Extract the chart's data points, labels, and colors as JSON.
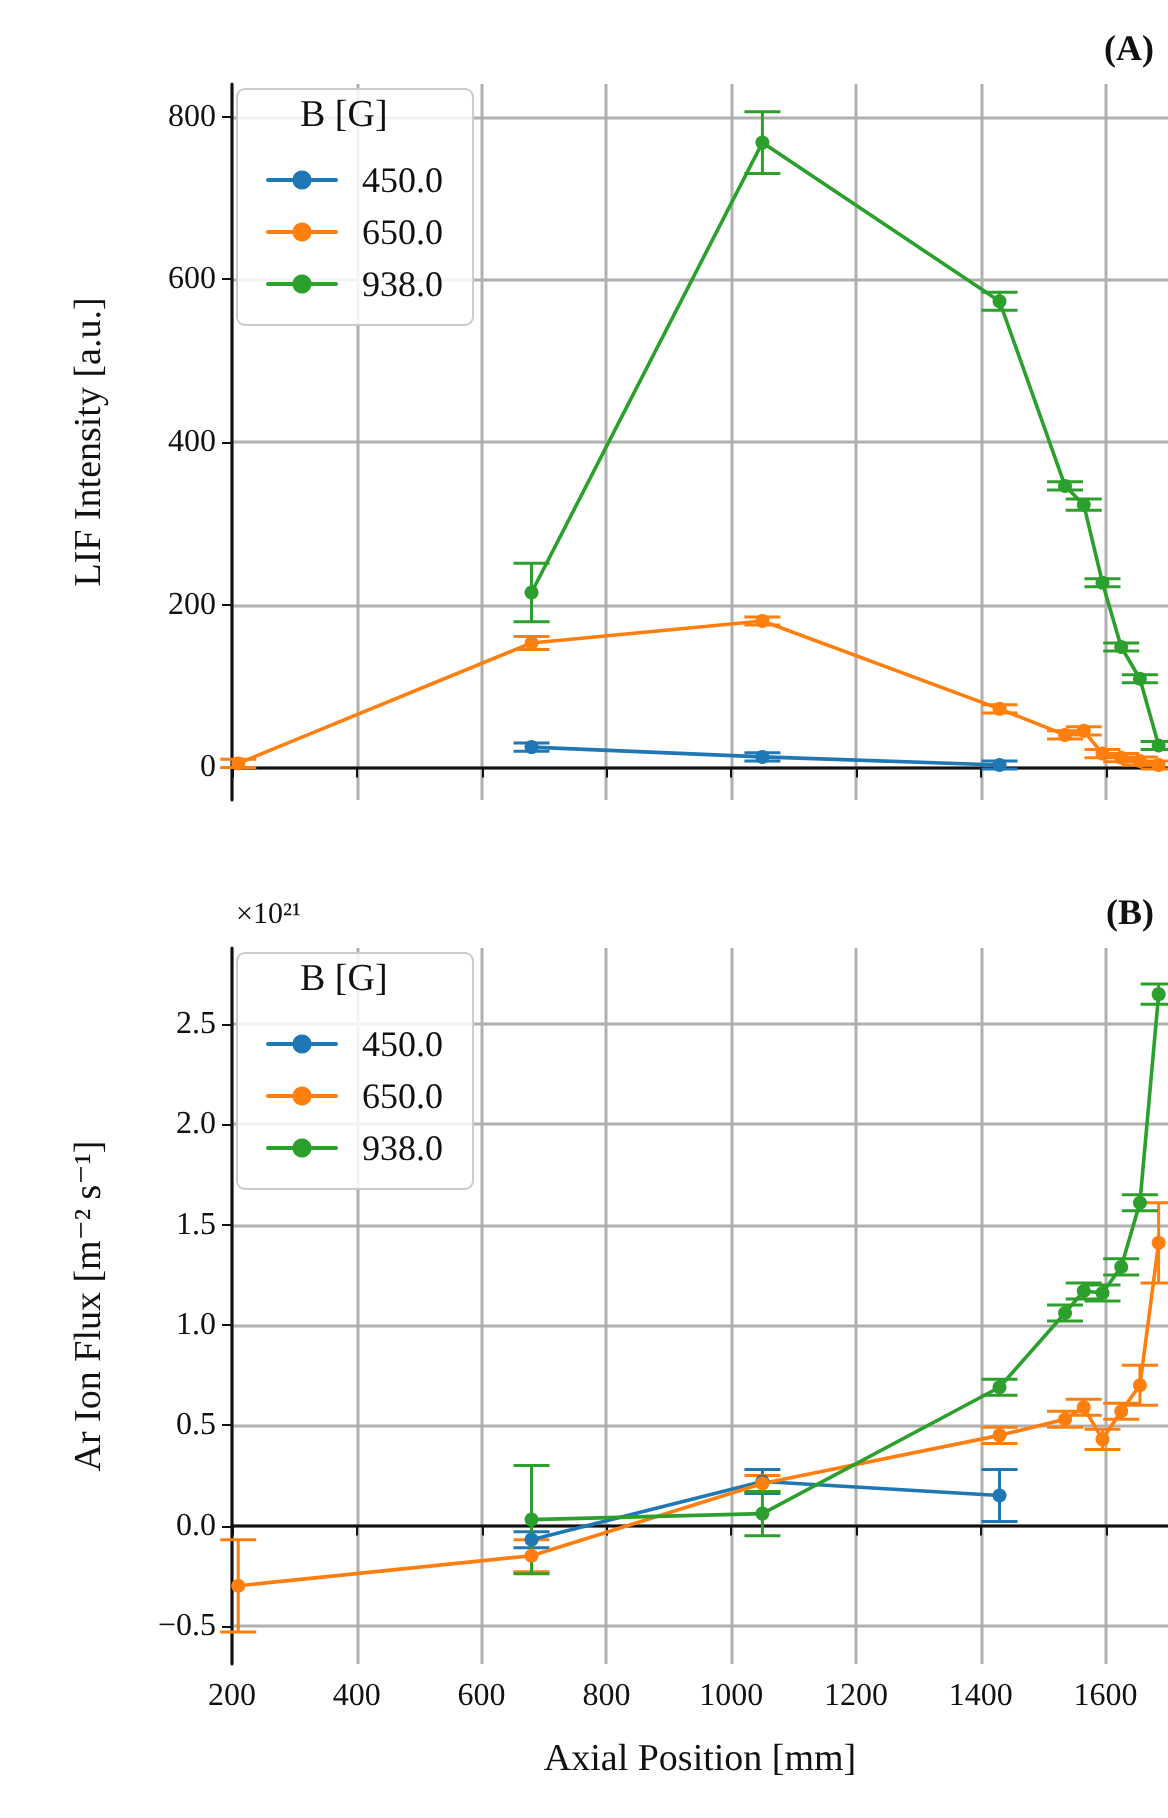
{
  "chart_data": [
    {
      "type": "line",
      "title": "(A)",
      "ylabel": "LIF Intensity [a.u.]",
      "legend_title": "B [G]",
      "legend": "top left",
      "grid": true,
      "marker": "circle",
      "tick_labels": "y",
      "xlim": [
        200,
        1700
      ],
      "xticks": [
        200,
        400,
        600,
        800,
        1000,
        1200,
        1400,
        1600
      ],
      "ylim": [
        -40,
        840
      ],
      "yticks": [
        0,
        200,
        400,
        600,
        800
      ],
      "series": [
        {
          "name": "450.0",
          "color": "#1f77b4",
          "x": [
            680,
            1050,
            1430
          ],
          "values": [
            25,
            13,
            3
          ],
          "errors": [
            5,
            5,
            5
          ]
        },
        {
          "name": "650.0",
          "color": "#ff7f0e",
          "x": [
            210,
            680,
            1050,
            1430,
            1535,
            1565,
            1595,
            1625,
            1655,
            1685
          ],
          "values": [
            5,
            153,
            180,
            72,
            40,
            45,
            17,
            12,
            8,
            3
          ],
          "errors": [
            5,
            8,
            5,
            5,
            5,
            5,
            5,
            5,
            5,
            5
          ]
        },
        {
          "name": "938.0",
          "color": "#2ca02c",
          "x": [
            680,
            1050,
            1430,
            1535,
            1565,
            1595,
            1625,
            1655,
            1685
          ],
          "values": [
            215,
            768,
            573,
            346,
            323,
            227,
            148,
            109,
            27
          ],
          "errors": [
            36,
            38,
            11,
            5,
            7,
            5,
            5,
            5,
            5
          ]
        }
      ]
    },
    {
      "type": "line",
      "title": "(B)",
      "xlabel": "Axial Position [mm]",
      "ylabel": "Ar Ion Flux [m⁻² s⁻¹]",
      "annotations": [
        "×10²¹"
      ],
      "legend_title": "B [G]",
      "legend": "top left",
      "grid": true,
      "marker": "circle",
      "xlim": [
        200,
        1700
      ],
      "xticks": [
        200,
        400,
        600,
        800,
        1000,
        1200,
        1400,
        1600
      ],
      "ylim": [
        -0.69,
        2.88
      ],
      "yticks": [
        {
          "value": -0.5,
          "label": "−0.5"
        },
        {
          "value": 0,
          "label": "0.0"
        },
        {
          "value": 0.5,
          "label": "0.5"
        },
        {
          "value": 1,
          "label": "1.0"
        },
        {
          "value": 1.5,
          "label": "1.5"
        },
        {
          "value": 2,
          "label": "2.0"
        },
        {
          "value": 2.5,
          "label": "2.5"
        }
      ],
      "series": [
        {
          "name": "450.0",
          "color": "#1f77b4",
          "x": [
            680,
            1050,
            1430
          ],
          "values": [
            -0.07,
            0.22,
            0.15
          ],
          "errors": [
            0.04,
            0.06,
            0.13
          ]
        },
        {
          "name": "650.0",
          "color": "#ff7f0e",
          "x": [
            210,
            680,
            1050,
            1430,
            1535,
            1565,
            1595,
            1625,
            1655,
            1685
          ],
          "values": [
            -0.3,
            -0.15,
            0.21,
            0.45,
            0.53,
            0.59,
            0.43,
            0.57,
            0.7,
            1.41
          ],
          "errors": [
            0.23,
            0.08,
            0.04,
            0.04,
            0.04,
            0.04,
            0.05,
            0.04,
            0.1,
            0.2
          ]
        },
        {
          "name": "938.0",
          "color": "#2ca02c",
          "x": [
            680,
            1050,
            1430,
            1535,
            1565,
            1595,
            1625,
            1655,
            1685
          ],
          "values": [
            0.03,
            0.06,
            0.69,
            1.06,
            1.17,
            1.16,
            1.29,
            1.61,
            2.65
          ],
          "errors": [
            0.27,
            0.11,
            0.04,
            0.04,
            0.04,
            0.04,
            0.04,
            0.04,
            0.05
          ]
        }
      ]
    }
  ]
}
